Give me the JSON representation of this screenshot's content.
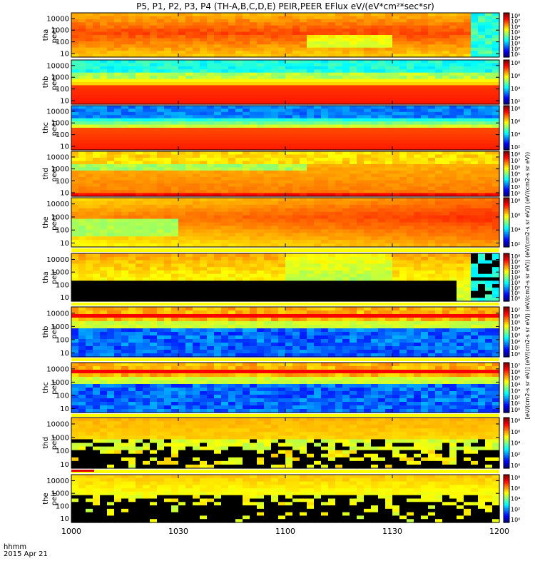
{
  "chart_data": {
    "type": "heatmap",
    "title": "P5, P1, P2, P3, P4 (TH-A,B,C,D,E) PEIR,PEER EFlux eV/(eV*cm²*sec*sr)",
    "colorbar_label": "[eV/(cm2-s sr eV)] (eV/(cm2-s sr eV)) (eV/(cm2-s sr eV)) (eV/(cm2-s sr eV)) (eV/(cm2-s sr eV))",
    "xlabel_lines": [
      "hhmm",
      "2015 Apr 21"
    ],
    "xticks": [
      "1000",
      "1030",
      "1100",
      "1130",
      "1200"
    ],
    "yscale": "log",
    "yticks_default": [
      "10000",
      "1000",
      "100",
      "10"
    ],
    "yticks_top": [
      "10000",
      "1000",
      "100",
      "10"
    ],
    "panels": [
      {
        "label": "tha peer",
        "ylim": [
          5,
          30000
        ],
        "cbar_ticks": [
          "10⁸",
          "10⁷",
          "10⁶",
          "10⁵",
          "10⁴",
          "10³",
          "10²",
          "10¹"
        ],
        "species": "electron",
        "probe": "tha"
      },
      {
        "label": "thb peer",
        "ylim": [
          5,
          30000
        ],
        "cbar_ticks": [
          "10⁸",
          "10⁶",
          "10⁴",
          "10²"
        ],
        "species": "electron",
        "probe": "thb"
      },
      {
        "label": "thc peer",
        "ylim": [
          5,
          30000
        ],
        "cbar_ticks": [
          "10⁸",
          "10⁶",
          "10⁴",
          "10²"
        ],
        "species": "electron",
        "probe": "thc"
      },
      {
        "label": "thd peer",
        "ylim": [
          5,
          30000
        ],
        "cbar_ticks": [
          "10⁸",
          "10⁷",
          "10⁶",
          "10⁵",
          "10⁴",
          "10³",
          "10²"
        ],
        "species": "electron",
        "probe": "thd"
      },
      {
        "label": "the peer",
        "ylim": [
          5,
          30000
        ],
        "cbar_ticks": [
          "10⁸",
          "10⁶",
          "10⁴",
          "10²"
        ],
        "species": "electron",
        "probe": "the"
      },
      {
        "label": "tha peir",
        "ylim": [
          5,
          30000
        ],
        "cbar_ticks": [
          "10⁸",
          "10⁷",
          "10⁶",
          "10⁵",
          "10⁴",
          "10³",
          "10²",
          "10¹",
          "10⁰"
        ],
        "species": "ion",
        "probe": "tha"
      },
      {
        "label": "thb peir",
        "ylim": [
          5,
          30000
        ],
        "cbar_ticks": [
          "10⁷",
          "10⁶",
          "10⁵",
          "10⁴",
          "10³",
          "10²",
          "10¹",
          "10⁰"
        ],
        "species": "ion",
        "probe": "thb"
      },
      {
        "label": "thc peir",
        "ylim": [
          5,
          30000
        ],
        "cbar_ticks": [
          "10⁷",
          "10⁶",
          "10⁵",
          "10⁴",
          "10³",
          "10²",
          "10¹",
          "10⁰"
        ],
        "species": "ion",
        "probe": "thc"
      },
      {
        "label": "thd peir",
        "ylim": [
          5,
          30000
        ],
        "cbar_ticks": [
          "10⁸",
          "10⁶",
          "10⁴",
          "10²",
          "10⁰"
        ],
        "species": "ion",
        "probe": "thd"
      },
      {
        "label": "the peir",
        "ylim": [
          5,
          30000
        ],
        "cbar_ticks": [
          "10⁸",
          "10⁶",
          "10⁴",
          "10²",
          "10⁰"
        ],
        "species": "ion",
        "probe": "the"
      }
    ]
  }
}
